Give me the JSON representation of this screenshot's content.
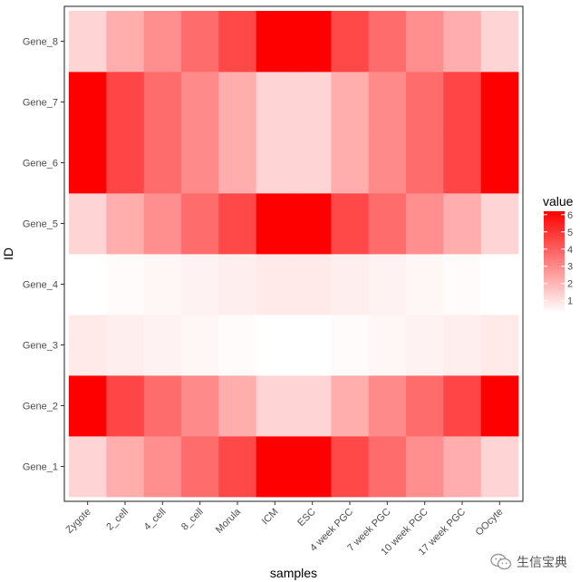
{
  "chart_data": {
    "type": "heatmap",
    "xlabel": "samples",
    "ylabel": "ID",
    "x_categories": [
      "Zygote",
      "2_cell",
      "4_cell",
      "8_cell",
      "Morula",
      "ICM",
      "ESC",
      "4 week PGC",
      "7 week PGC",
      "10 week PGC",
      "17 week PGC",
      "OOcyte"
    ],
    "y_categories": [
      "Gene_1",
      "Gene_2",
      "Gene_3",
      "Gene_4",
      "Gene_5",
      "Gene_6",
      "Gene_7",
      "Gene_8"
    ],
    "values": [
      [
        1.3,
        2.2,
        2.9,
        3.7,
        4.5,
        6.2,
        6.2,
        4.5,
        3.7,
        2.9,
        2.2,
        1.3
      ],
      [
        6.2,
        4.6,
        3.7,
        3.0,
        2.2,
        1.3,
        1.3,
        2.2,
        3.0,
        3.7,
        4.6,
        6.2
      ],
      [
        0.8,
        0.7,
        0.6,
        0.5,
        0.4,
        0.3,
        0.3,
        0.4,
        0.5,
        0.6,
        0.7,
        0.8
      ],
      [
        0.3,
        0.4,
        0.5,
        0.6,
        0.7,
        0.8,
        0.8,
        0.7,
        0.6,
        0.5,
        0.4,
        0.3
      ],
      [
        1.3,
        2.2,
        2.9,
        3.7,
        4.5,
        6.2,
        6.2,
        4.5,
        3.7,
        2.9,
        2.2,
        1.3
      ],
      [
        6.2,
        4.6,
        3.7,
        3.0,
        2.2,
        1.3,
        1.3,
        2.2,
        3.0,
        3.7,
        4.6,
        6.2
      ],
      [
        6.2,
        4.6,
        3.7,
        3.0,
        2.2,
        1.3,
        1.3,
        2.2,
        3.0,
        3.7,
        4.6,
        6.2
      ],
      [
        1.3,
        2.2,
        2.9,
        3.7,
        4.5,
        6.2,
        6.2,
        4.5,
        3.7,
        2.9,
        2.2,
        1.3
      ]
    ],
    "color_low": "#ffffff",
    "color_high": "#ff0000",
    "value_range": [
      0.3,
      6.2
    ],
    "legend": {
      "title": "value",
      "placement": "right",
      "breaks": [
        1,
        2,
        3,
        4,
        5,
        6
      ]
    }
  },
  "watermark": {
    "text": "生信宝典",
    "icon": "wechat-icon"
  }
}
